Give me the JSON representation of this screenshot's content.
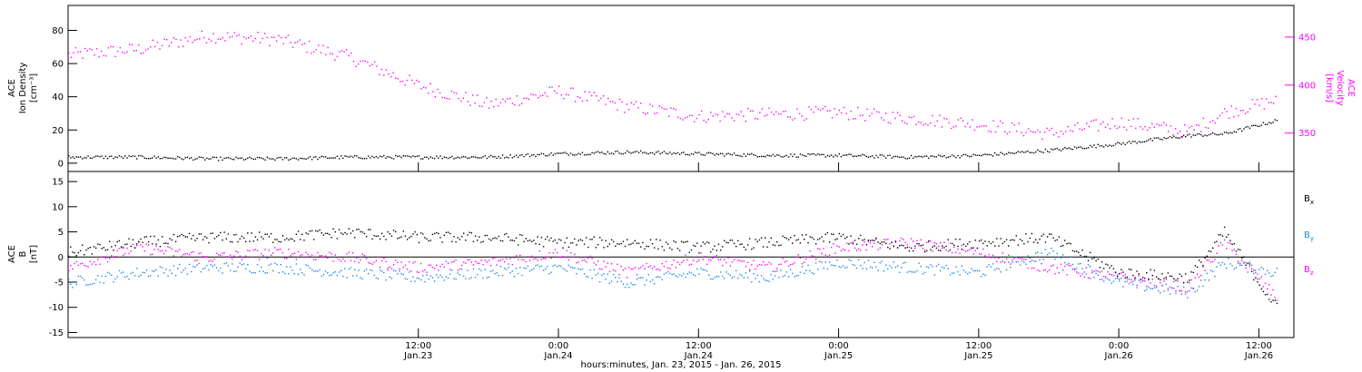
{
  "figure": {
    "xlabel": "hours:minutes, Jan. 23, 2015 - Jan. 26, 2015",
    "x_start": "2015-01-22T06:00",
    "x_end": "2015-01-26T15:00"
  },
  "colors": {
    "density": "#000000",
    "velocity": "#ff00ff",
    "bx": "#000000",
    "by": "#1e88e5",
    "bz": "#ff00ff",
    "axis": "#000000",
    "right_axis": "#ff00ff"
  },
  "chart_data": [
    {
      "type": "scatter",
      "panel": "top",
      "ylabel_lines": [
        "ACE",
        "Ion Density",
        "[cm⁻³]"
      ],
      "ylim": [
        -5,
        95
      ],
      "yticks": [
        0,
        20,
        40,
        60,
        80
      ],
      "ytick_labels": [
        "0",
        "20",
        "40",
        "60",
        "80"
      ],
      "right_axis": {
        "ylabel_lines": [
          "ACE",
          "Velocity",
          "[km/s]"
        ],
        "ylim": [
          310,
          483
        ],
        "yticks": [
          350,
          400,
          450
        ],
        "ytick_labels": [
          "350",
          "400",
          "450"
        ]
      },
      "series": [
        {
          "name": "",
          "axis": "left",
          "x": [
            "2015-01-22T06:00",
            "2015-01-22T12:00",
            "2015-01-22T18:00",
            "2015-01-23T00:00",
            "2015-01-23T06:00",
            "2015-01-23T12:00",
            "2015-01-23T18:00",
            "2015-01-24T00:00",
            "2015-01-24T06:00",
            "2015-01-24T12:00",
            "2015-01-24T18:00",
            "2015-01-25T00:00",
            "2015-01-25T06:00",
            "2015-01-25T12:00",
            "2015-01-25T18:00",
            "2015-01-26T00:00",
            "2015-01-26T06:00",
            "2015-01-26T09:00",
            "2015-01-26T13:30"
          ],
          "y": [
            4,
            4,
            3,
            3,
            4,
            4,
            4,
            6,
            7,
            6,
            5,
            5,
            4,
            5,
            8,
            12,
            17,
            18,
            26
          ]
        },
        {
          "name": "",
          "axis": "right",
          "x": [
            "2015-01-22T06:00",
            "2015-01-22T12:00",
            "2015-01-22T18:00",
            "2015-01-23T00:00",
            "2015-01-23T06:00",
            "2015-01-23T12:00",
            "2015-01-23T18:00",
            "2015-01-24T00:00",
            "2015-01-24T06:00",
            "2015-01-24T12:00",
            "2015-01-24T18:00",
            "2015-01-25T00:00",
            "2015-01-25T06:00",
            "2015-01-25T12:00",
            "2015-01-25T18:00",
            "2015-01-26T00:00",
            "2015-01-26T06:00",
            "2015-01-26T09:00",
            "2015-01-26T13:30"
          ],
          "y": [
            432,
            438,
            452,
            448,
            430,
            400,
            380,
            394,
            378,
            368,
            370,
            372,
            366,
            360,
            350,
            362,
            352,
            372,
            385
          ]
        }
      ]
    },
    {
      "type": "scatter",
      "panel": "bottom",
      "ylabel_lines": [
        "ACE",
        "B",
        "[nT]"
      ],
      "ylim": [
        -16,
        17
      ],
      "yticks": [
        -15,
        -10,
        -5,
        0,
        5,
        10,
        15
      ],
      "ytick_labels": [
        "-15",
        "-10",
        "-5",
        "0",
        "5",
        "10",
        "15"
      ],
      "zero_line": true,
      "x_tick_labels": [
        {
          "x": "2015-01-23T12:00",
          "time": "12:00",
          "day": "Jan.23"
        },
        {
          "x": "2015-01-24T00:00",
          "time": "0:00",
          "day": "Jan.24"
        },
        {
          "x": "2015-01-24T12:00",
          "time": "12:00",
          "day": "Jan.24"
        },
        {
          "x": "2015-01-25T00:00",
          "time": "0:00",
          "day": "Jan.25"
        },
        {
          "x": "2015-01-25T12:00",
          "time": "12:00",
          "day": "Jan.25"
        },
        {
          "x": "2015-01-26T00:00",
          "time": "0:00",
          "day": "Jan.26"
        },
        {
          "x": "2015-01-26T12:00",
          "time": "12:00",
          "day": "Jan.26"
        }
      ],
      "legend": [
        {
          "text": "B",
          "sub": "x",
          "color": "#000000"
        },
        {
          "text": "B",
          "sub": "y",
          "color": "#1e88e5"
        },
        {
          "text": "B",
          "sub": "z",
          "color": "#ff00ff"
        }
      ],
      "legend_placement": "right",
      "series": [
        {
          "name": "Bx",
          "x": [
            "2015-01-22T06:00",
            "2015-01-22T12:00",
            "2015-01-22T18:00",
            "2015-01-23T00:00",
            "2015-01-23T06:00",
            "2015-01-23T12:00",
            "2015-01-23T18:00",
            "2015-01-24T00:00",
            "2015-01-24T06:00",
            "2015-01-24T12:00",
            "2015-01-24T18:00",
            "2015-01-25T00:00",
            "2015-01-25T06:00",
            "2015-01-25T12:00",
            "2015-01-25T18:00",
            "2015-01-26T00:00",
            "2015-01-26T06:00",
            "2015-01-26T09:00",
            "2015-01-26T13:30"
          ],
          "y": [
            1,
            3,
            4,
            4,
            5,
            4,
            4,
            3,
            3,
            2,
            3,
            4,
            2,
            3,
            4,
            -3,
            -4,
            5,
            -10
          ]
        },
        {
          "name": "By",
          "x": [
            "2015-01-22T06:00",
            "2015-01-22T12:00",
            "2015-01-22T18:00",
            "2015-01-23T00:00",
            "2015-01-23T06:00",
            "2015-01-23T12:00",
            "2015-01-23T18:00",
            "2015-01-24T00:00",
            "2015-01-24T06:00",
            "2015-01-24T12:00",
            "2015-01-24T18:00",
            "2015-01-25T00:00",
            "2015-01-25T06:00",
            "2015-01-25T12:00",
            "2015-01-25T18:00",
            "2015-01-26T00:00",
            "2015-01-26T06:00",
            "2015-01-26T09:00",
            "2015-01-26T13:30"
          ],
          "y": [
            -5,
            -3,
            -2,
            -2,
            -3,
            -4,
            -3,
            -2,
            -5,
            -3,
            -4,
            -1,
            -2,
            -3,
            1,
            -5,
            -7,
            -1,
            -3
          ]
        },
        {
          "name": "Bz",
          "x": [
            "2015-01-22T06:00",
            "2015-01-22T12:00",
            "2015-01-22T18:00",
            "2015-01-23T00:00",
            "2015-01-23T06:00",
            "2015-01-23T12:00",
            "2015-01-23T18:00",
            "2015-01-24T00:00",
            "2015-01-24T06:00",
            "2015-01-24T12:00",
            "2015-01-24T18:00",
            "2015-01-25T00:00",
            "2015-01-25T06:00",
            "2015-01-25T12:00",
            "2015-01-25T18:00",
            "2015-01-26T00:00",
            "2015-01-26T06:00",
            "2015-01-26T09:00",
            "2015-01-26T13:30"
          ],
          "y": [
            -2,
            2,
            0,
            1,
            0,
            -2,
            -1,
            1,
            -3,
            0,
            -2,
            2,
            3,
            1,
            -2,
            -4,
            -6,
            3,
            -8
          ]
        }
      ]
    }
  ]
}
